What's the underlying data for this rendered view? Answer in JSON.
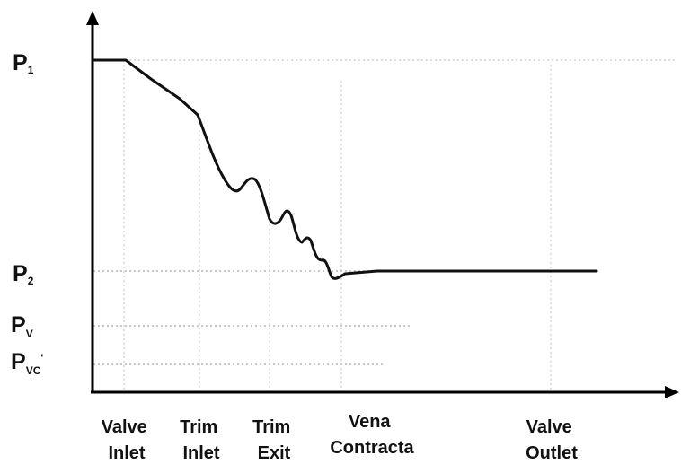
{
  "pressure_levels": [
    {
      "id": "p1",
      "main": "P",
      "sub": "1"
    },
    {
      "id": "p2",
      "main": "P",
      "sub": "2"
    },
    {
      "id": "pv",
      "main": "P",
      "sub": "V"
    },
    {
      "id": "pvc",
      "main": "P",
      "sub": "VC",
      "sup": "'"
    }
  ],
  "x_labels": [
    {
      "id": "valve-inlet",
      "line1": "Valve",
      "line2": "Inlet"
    },
    {
      "id": "trim-inlet",
      "line1": "Trim",
      "line2": "Inlet"
    },
    {
      "id": "trim-exit",
      "line1": "Trim",
      "line2": "Exit"
    },
    {
      "id": "vena-contracta",
      "line1": "Vena",
      "line2": "Contracta"
    },
    {
      "id": "valve-outlet",
      "line1": "Valve",
      "line2": "Outlet"
    }
  ],
  "colors": {
    "axis": "#000000",
    "curve": "#111111",
    "guide": "#b5b5b5"
  }
}
